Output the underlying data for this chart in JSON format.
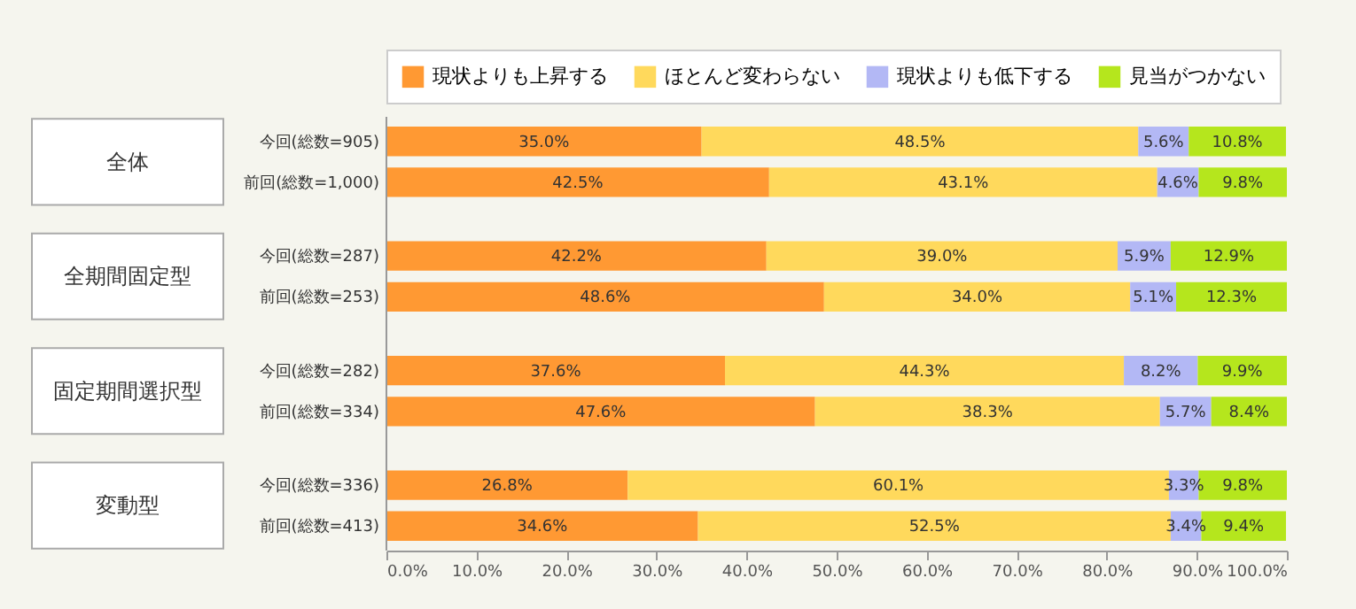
{
  "chart_data": {
    "type": "bar",
    "orientation": "horizontal",
    "stacked": true,
    "categories": [
      "今回(総数=905)",
      "前回(総数=1,000)",
      "今回(総数=287)",
      "前回(総数=253)",
      "今回(総数=282)",
      "前回(総数=334)",
      "今回(総数=336)",
      "前回(総数=413)"
    ],
    "series": [
      {
        "name": "現状よりも上昇する",
        "color": "#ff9933",
        "values": [
          35.0,
          42.5,
          42.2,
          48.6,
          37.6,
          47.6,
          26.8,
          34.6
        ],
        "value_labels": [
          "35.0%",
          "42.5%",
          "42.2%",
          "48.6%",
          "37.6%",
          "47.6%",
          "26.8%",
          "34.6%"
        ]
      },
      {
        "name": "ほとんど変わらない",
        "color": "#ffd95c",
        "values": [
          48.5,
          43.1,
          39.0,
          34.0,
          44.3,
          38.3,
          60.1,
          52.5
        ],
        "value_labels": [
          "48.5%",
          "43.1%",
          "39.0%",
          "34.0%",
          "44.3%",
          "38.3%",
          "60.1%",
          "52.5%"
        ]
      },
      {
        "name": "現状よりも低下する",
        "color": "#b3b8f5",
        "values": [
          5.6,
          4.6,
          5.9,
          5.1,
          8.2,
          5.7,
          3.3,
          3.4
        ],
        "value_labels": [
          "5.6%",
          "4.6%",
          "5.9%",
          "5.1%",
          "8.2%",
          "5.7%",
          "3.3%",
          "3.4%"
        ]
      },
      {
        "name": "見当がつかない",
        "color": "#b5e61d",
        "values": [
          10.8,
          9.8,
          12.9,
          12.3,
          9.9,
          8.4,
          9.8,
          9.4
        ],
        "value_labels": [
          "10.8%",
          "9.8%",
          "12.9%",
          "12.3%",
          "9.9%",
          "8.4%",
          "9.8%",
          "9.4%"
        ]
      }
    ],
    "annotations": [
      "全体",
      "全期間固定型",
      "固定期間選択型",
      "変動型"
    ],
    "xlim": [
      0,
      100
    ],
    "xticks": [
      {
        "value": 0,
        "label": "0.0%"
      },
      {
        "value": 10,
        "label": "10.0%"
      },
      {
        "value": 20,
        "label": "20.0%"
      },
      {
        "value": 30,
        "label": "30.0%"
      },
      {
        "value": 40,
        "label": "40.0%"
      },
      {
        "value": 50,
        "label": "50.0%"
      },
      {
        "value": 60,
        "label": "60.0%"
      },
      {
        "value": 70,
        "label": "70.0%"
      },
      {
        "value": 80,
        "label": "80.0%"
      },
      {
        "value": 90,
        "label": "90.0%"
      },
      {
        "value": 100,
        "label": "100.0%"
      }
    ],
    "legend": "top",
    "grid": false
  }
}
